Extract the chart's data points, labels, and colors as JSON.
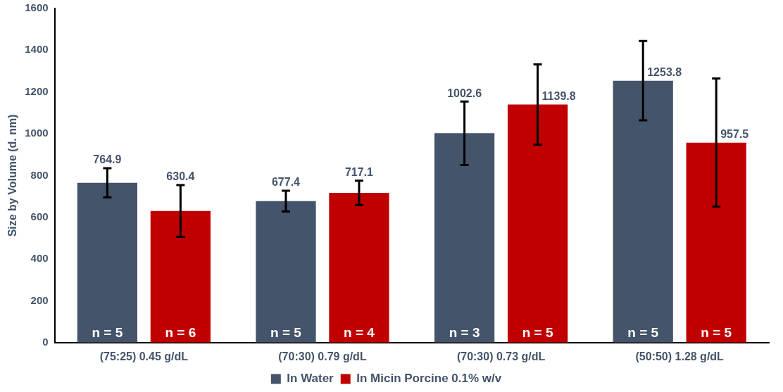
{
  "chart_data": {
    "type": "bar",
    "ylabel": "Size by Volume (d. nm)",
    "categories": [
      "(75:25) 0.45 g/dL",
      "(70:30) 0.79 g/dL",
      "(70:30) 0.73 g/dL",
      "(50:50) 1.28 g/dL"
    ],
    "series": [
      {
        "name": "In Water",
        "color": "#44546a",
        "values": [
          764.9,
          677.4,
          1002.6,
          1253.8
        ],
        "errors": [
          70,
          50,
          152,
          190
        ]
      },
      {
        "name": "In Micin Porcine 0.1% w/v",
        "color": "#c00000",
        "values": [
          630.4,
          717.1,
          1139.8,
          957.5
        ],
        "errors": [
          124,
          58,
          192,
          307
        ]
      }
    ],
    "ylim": [
      0,
      1600
    ],
    "yticks": [
      0,
      200,
      400,
      600,
      800,
      1000,
      1200,
      1400,
      1600
    ],
    "grid": false,
    "legend": "bottom",
    "data_labels": true,
    "annotations": [
      "n = 5",
      "n = 6",
      "n = 5",
      "n = 4",
      "n = 3",
      "n = 5",
      "n = 5",
      "n = 5"
    ]
  }
}
